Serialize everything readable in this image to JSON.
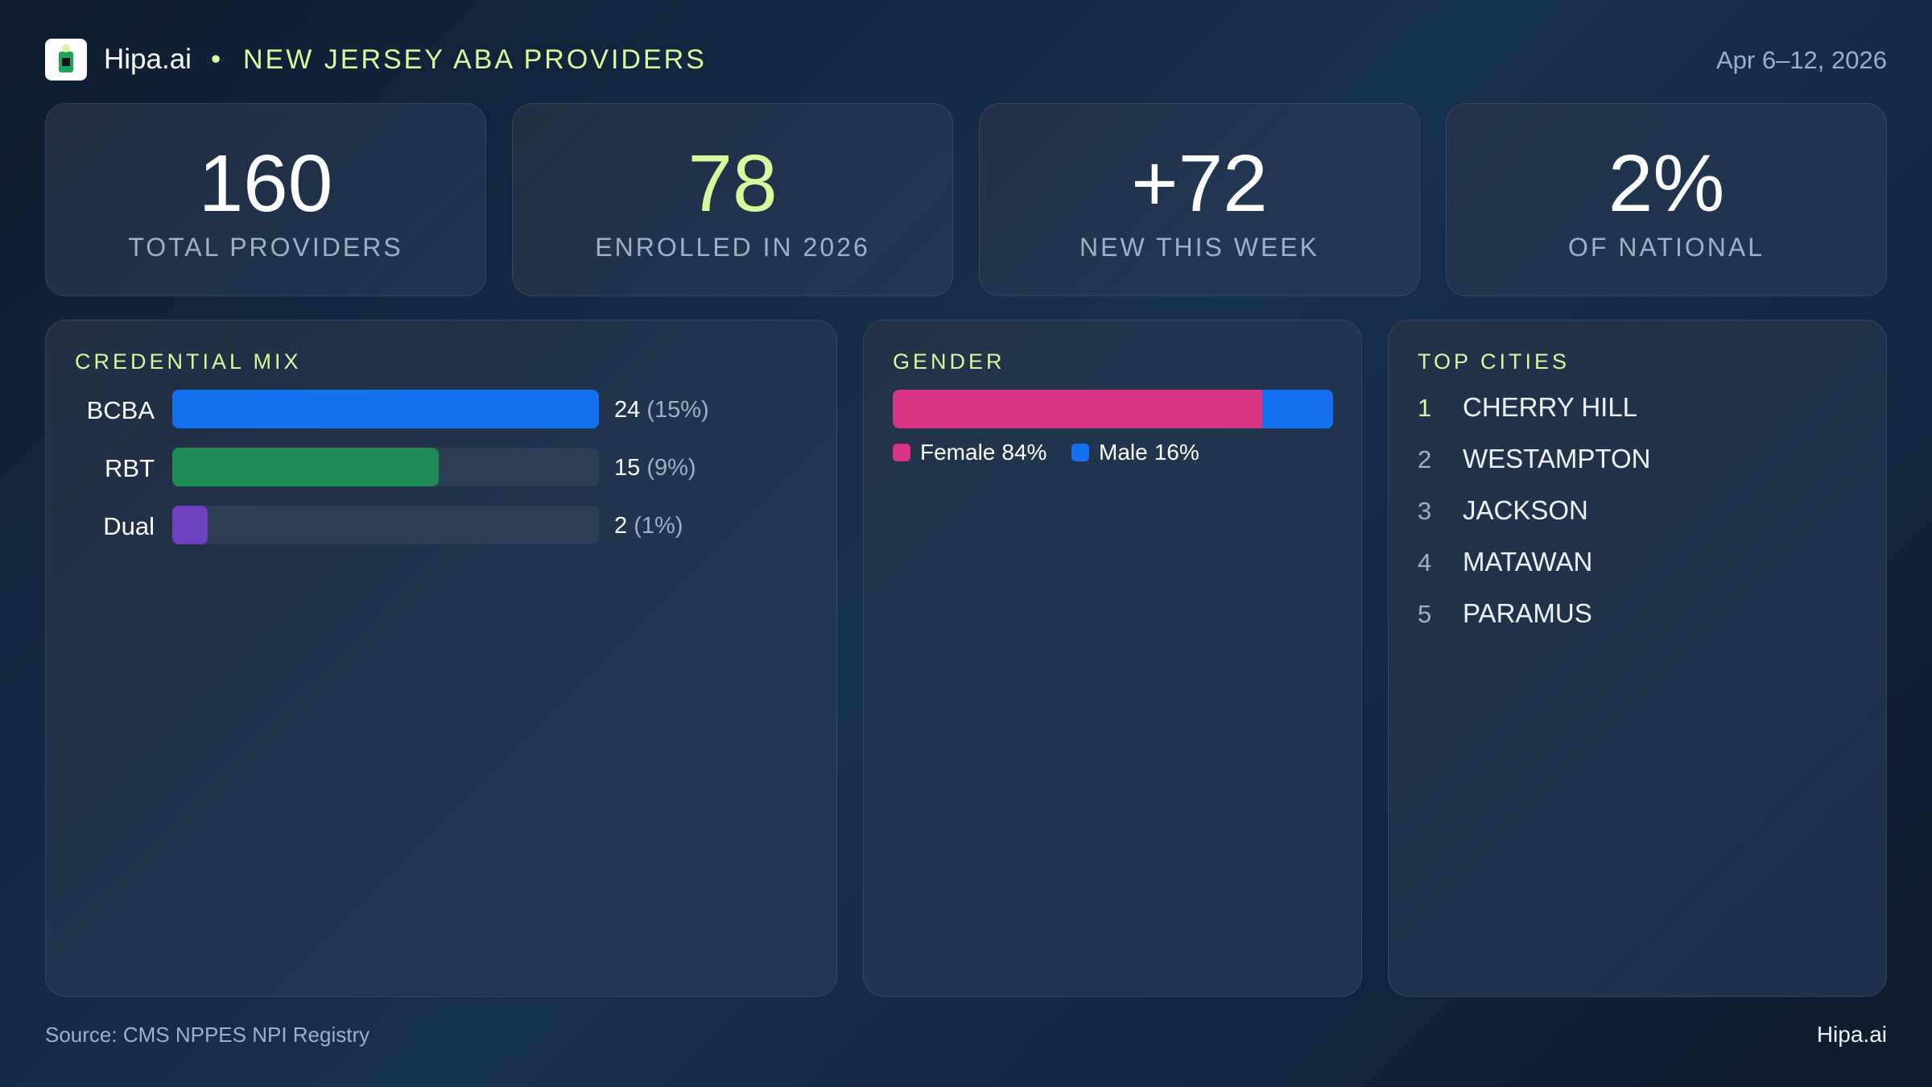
{
  "header": {
    "brand": "Hipa.ai",
    "separator": "•",
    "title": "NEW JERSEY ABA PROVIDERS",
    "date_range": "Apr 6–12, 2026"
  },
  "kpis": [
    {
      "value": "160",
      "label": "TOTAL PROVIDERS",
      "color": "#ffffff"
    },
    {
      "value": "78",
      "label": "ENROLLED IN 2026",
      "color": "#d9f99d"
    },
    {
      "value": "+72",
      "label": "NEW THIS WEEK",
      "color": "#ffffff"
    },
    {
      "value": "2%",
      "label": "OF NATIONAL",
      "color": "#ffffff"
    }
  ],
  "credential_mix": {
    "type": "bar",
    "title": "CREDENTIAL MIX",
    "categories": [
      "BCBA",
      "RBT",
      "Dual"
    ],
    "values": [
      24,
      15,
      2
    ],
    "share_labels": [
      "(15%)",
      "(9%)",
      "(1%)"
    ],
    "colors": [
      "#1570ef",
      "#1e8a55",
      "#6f42c1"
    ],
    "xlim": [
      0,
      24
    ]
  },
  "gender": {
    "type": "stacked-bar",
    "title": "GENDER",
    "series": [
      {
        "name": "Female",
        "color": "#d63384",
        "values": [
          84
        ],
        "value_labels": [
          "84%"
        ]
      },
      {
        "name": "Male",
        "color": "#1570ef",
        "values": [
          16
        ],
        "value_labels": [
          "16%"
        ]
      }
    ],
    "xlim": [
      0,
      100
    ]
  },
  "top_cities": {
    "title": "TOP CITIES",
    "items": [
      {
        "rank": "1",
        "name": "CHERRY HILL"
      },
      {
        "rank": "2",
        "name": "WESTAMPTON"
      },
      {
        "rank": "3",
        "name": "JACKSON"
      },
      {
        "rank": "4",
        "name": "MATAWAN"
      },
      {
        "rank": "5",
        "name": "PARAMUS"
      }
    ]
  },
  "footer": {
    "source": "Source: CMS NPPES NPI Registry",
    "brand": "Hipa.ai"
  }
}
